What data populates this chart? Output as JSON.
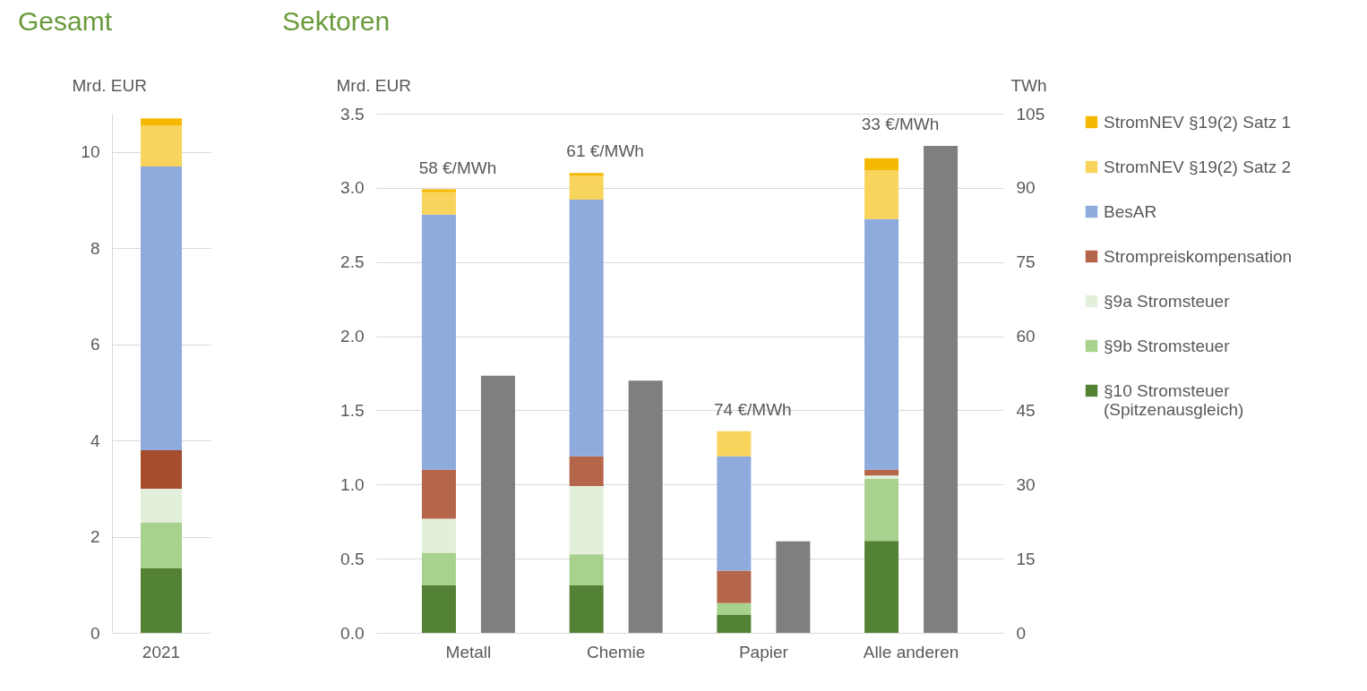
{
  "chart_data": [
    {
      "type": "bar",
      "title": "Gesamt",
      "ylabel": "Mrd. EUR",
      "categories": [
        "2021"
      ],
      "stacked": true,
      "ylim": [
        0,
        10.8
      ],
      "yticks": [
        0,
        2,
        4,
        6,
        8,
        10
      ],
      "grid": "y",
      "series": [
        {
          "color": "#548235",
          "values": [
            1.35
          ]
        },
        {
          "color": "#a9d18e",
          "values": [
            0.95
          ]
        },
        {
          "color": "#e2efda",
          "values": [
            0.7
          ]
        },
        {
          "color": "#a64d2e",
          "values": [
            0.8
          ]
        },
        {
          "color": "#8faadc",
          "values": [
            5.9
          ]
        },
        {
          "color": "#f9d45c",
          "values": [
            0.85
          ]
        },
        {
          "color": "#f5b800",
          "values": [
            0.15
          ]
        }
      ]
    },
    {
      "type": "bar",
      "title": "Sektoren",
      "ylabel": "Mrd. EUR",
      "y2label": "TWh",
      "categories": [
        "Metall",
        "Chemie",
        "Papier",
        "Alle anderen"
      ],
      "stacked": true,
      "ylim": [
        0,
        3.5
      ],
      "yticks": [
        {
          "value": 0,
          "label": "0.0"
        },
        0.5,
        {
          "value": 1,
          "label": "1.0"
        },
        1.5,
        {
          "value": 2,
          "label": "2.0"
        },
        2.5,
        {
          "value": 3,
          "label": "3.0"
        },
        3.5
      ],
      "y2lim": [
        0,
        105
      ],
      "y2ticks": [
        0,
        15,
        30,
        45,
        60,
        75,
        90,
        105
      ],
      "grid": "y",
      "legend": "right",
      "series": [
        {
          "name": "§10 Stromsteuer (Spitzenausgleich)",
          "color": "#548235",
          "values": [
            0.32,
            0.32,
            0.12,
            0.62
          ]
        },
        {
          "name": "§9b Stromsteuer",
          "color": "#a9d18e",
          "values": [
            0.22,
            0.21,
            0.08,
            0.42
          ]
        },
        {
          "name": "§9a Stromsteuer",
          "color": "#e2efda",
          "values": [
            0.23,
            0.46,
            0,
            0.02
          ]
        },
        {
          "name": "Strompreiskompensation",
          "color": "#b5654a",
          "values": [
            0.33,
            0.2,
            0.22,
            0.04
          ]
        },
        {
          "name": "BesAR",
          "color": "#8faadc",
          "values": [
            1.72,
            1.73,
            0.77,
            1.69
          ]
        },
        {
          "name": "StromNEV §19(2) Satz 2",
          "color": "#f9d45c",
          "values": [
            0.15,
            0.16,
            0.17,
            0.33
          ]
        },
        {
          "name": "StromNEV §19(2) Satz 1",
          "color": "#f5b800",
          "values": [
            0.02,
            0.02,
            0,
            0.08
          ]
        },
        {
          "color": "#7f7f7f",
          "axis": "y2",
          "values": [
            52,
            51,
            18.5,
            98.5
          ]
        }
      ],
      "annotations": [
        "58 €/MWh",
        "61 €/MWh",
        "74 €/MWh",
        "33 €/MWh"
      ]
    }
  ]
}
